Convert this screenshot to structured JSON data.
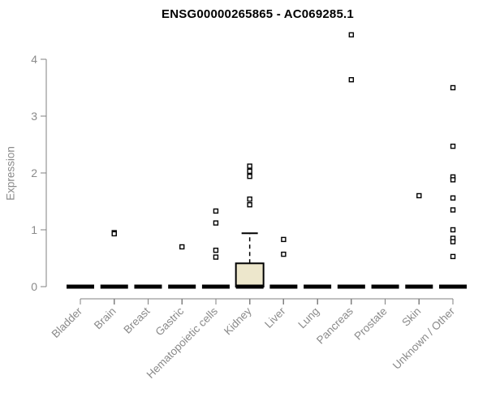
{
  "chart_data": {
    "type": "boxplot",
    "title": "ENSG00000265865 - AC069285.1",
    "ylabel": "Expression",
    "xlabel": "",
    "yticks": [
      0,
      1,
      2,
      3,
      4
    ],
    "ylim": [
      0,
      4.5
    ],
    "grid": false,
    "legend": "none",
    "categories": [
      "Bladder",
      "Brain",
      "Breast",
      "Gastric",
      "Hematopoietic cells",
      "Kidney",
      "Liver",
      "Lung",
      "Pancreas",
      "Prostate",
      "Skin",
      "Unknown / Other"
    ],
    "groups": [
      {
        "category": "Bladder",
        "box": {
          "median": 0,
          "q1": 0,
          "q3": 0,
          "whisker_low": 0,
          "whisker_high": 0
        },
        "outliers": []
      },
      {
        "category": "Brain",
        "box": {
          "median": 0,
          "q1": 0,
          "q3": 0,
          "whisker_low": 0,
          "whisker_high": 0
        },
        "outliers": [
          0.95,
          0.93
        ]
      },
      {
        "category": "Breast",
        "box": {
          "median": 0,
          "q1": 0,
          "q3": 0,
          "whisker_low": 0,
          "whisker_high": 0
        },
        "outliers": []
      },
      {
        "category": "Gastric",
        "box": {
          "median": 0,
          "q1": 0,
          "q3": 0,
          "whisker_low": 0,
          "whisker_high": 0
        },
        "outliers": [
          0.7
        ]
      },
      {
        "category": "Hematopoietic cells",
        "box": {
          "median": 0,
          "q1": 0,
          "q3": 0,
          "whisker_low": 0,
          "whisker_high": 0
        },
        "outliers": [
          1.33,
          1.12,
          0.64,
          0.52
        ]
      },
      {
        "category": "Kidney",
        "box": {
          "median": 0,
          "q1": 0,
          "q3": 0.41,
          "whisker_low": 0,
          "whisker_high": 0.94
        },
        "outliers": [
          2.12,
          2.03,
          1.94,
          1.54,
          1.44
        ]
      },
      {
        "category": "Liver",
        "box": {
          "median": 0,
          "q1": 0,
          "q3": 0,
          "whisker_low": 0,
          "whisker_high": 0
        },
        "outliers": [
          0.83,
          0.57
        ]
      },
      {
        "category": "Lung",
        "box": {
          "median": 0,
          "q1": 0,
          "q3": 0,
          "whisker_low": 0,
          "whisker_high": 0
        },
        "outliers": []
      },
      {
        "category": "Pancreas",
        "box": {
          "median": 0,
          "q1": 0,
          "q3": 0,
          "whisker_low": 0,
          "whisker_high": 0
        },
        "outliers": [
          4.43,
          3.64
        ]
      },
      {
        "category": "Prostate",
        "box": {
          "median": 0,
          "q1": 0,
          "q3": 0,
          "whisker_low": 0,
          "whisker_high": 0
        },
        "outliers": []
      },
      {
        "category": "Skin",
        "box": {
          "median": 0,
          "q1": 0,
          "q3": 0,
          "whisker_low": 0,
          "whisker_high": 0
        },
        "outliers": [
          1.6
        ]
      },
      {
        "category": "Unknown / Other",
        "box": {
          "median": 0,
          "q1": 0,
          "q3": 0,
          "whisker_low": 0,
          "whisker_high": 0
        },
        "outliers": [
          3.5,
          2.47,
          1.93,
          1.88,
          1.56,
          1.35,
          1.0,
          0.85,
          0.79,
          0.53
        ]
      }
    ],
    "colors": {
      "box_fill": "#EDE7CC",
      "box_stroke": "#000000",
      "marker_stroke": "#000000",
      "marker_fill": "#ffffff",
      "axis": "#808080",
      "tick_label": "#8a8a8a",
      "title": "#000000",
      "background": "#ffffff"
    }
  }
}
